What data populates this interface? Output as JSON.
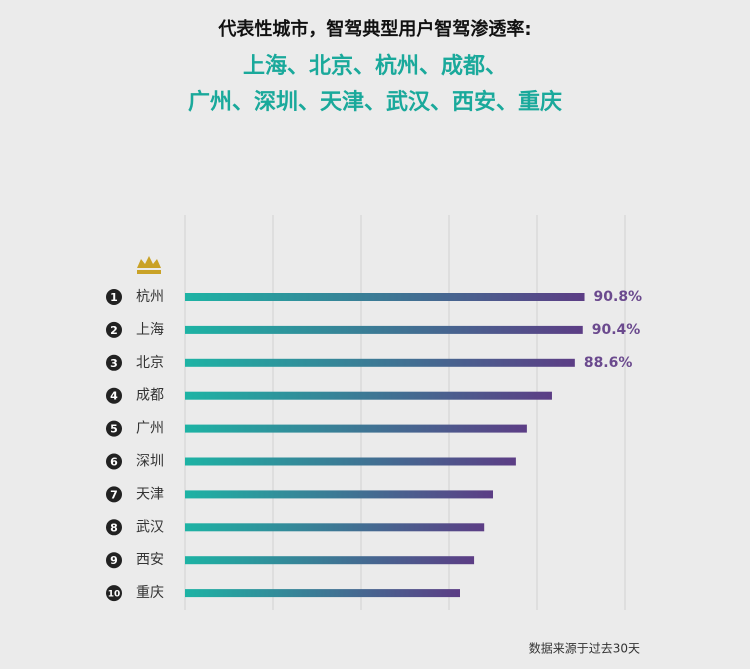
{
  "chart_data": {
    "type": "bar",
    "orientation": "horizontal",
    "title": "代表性城市，智驾典型用户智驾渗透率:",
    "subtitle_lines": [
      "上海、北京、杭州、成都、",
      "广州、深圳、天津、武汉、西安、重庆"
    ],
    "ranks": [
      "1",
      "2",
      "3",
      "4",
      "5",
      "6",
      "7",
      "8",
      "9",
      "10"
    ],
    "categories": [
      "杭州",
      "上海",
      "北京",
      "成都",
      "广州",
      "深圳",
      "天津",
      "武汉",
      "西安",
      "重庆"
    ],
    "values": [
      90.8,
      90.4,
      88.6,
      83.4,
      77.7,
      75.2,
      70,
      68,
      65.7,
      62.5
    ],
    "value_labels": [
      "90.8%",
      "90.4%",
      "88.6%",
      null,
      null,
      null,
      null,
      null,
      null,
      null
    ],
    "color_start": "#1db3a4",
    "color_end": "#5c3d85",
    "label_color": "#6b4a8e",
    "xlim": [
      0,
      100
    ],
    "xticks": [
      0,
      20,
      40,
      60,
      80,
      100
    ],
    "grid": true,
    "source": "数据来源于过去30天"
  }
}
